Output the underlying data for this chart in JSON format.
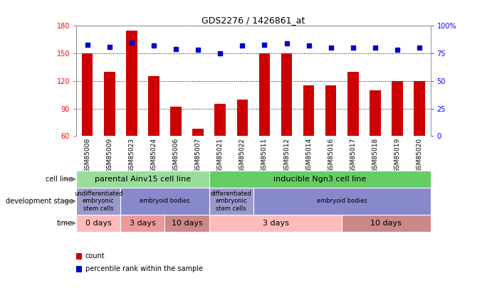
{
  "title": "GDS2276 / 1426861_at",
  "samples": [
    "GSM85008",
    "GSM85009",
    "GSM85023",
    "GSM85024",
    "GSM85006",
    "GSM85007",
    "GSM85021",
    "GSM85022",
    "GSM85011",
    "GSM85012",
    "GSM85014",
    "GSM85016",
    "GSM85017",
    "GSM85018",
    "GSM85019",
    "GSM85020"
  ],
  "counts": [
    150,
    130,
    175,
    125,
    92,
    68,
    95,
    100,
    150,
    150,
    115,
    115,
    130,
    110,
    120,
    120
  ],
  "percentiles": [
    83,
    81,
    85,
    82,
    79,
    78,
    75,
    82,
    83,
    84,
    82,
    80,
    80,
    80,
    78,
    80
  ],
  "ylim_left": [
    60,
    180
  ],
  "yticks_left": [
    60,
    90,
    120,
    150,
    180
  ],
  "ylim_right": [
    0,
    100
  ],
  "yticks_right": [
    0,
    25,
    50,
    75,
    100
  ],
  "bar_color": "#cc0000",
  "dot_color": "#0000cc",
  "xtick_bg": "#cccccc",
  "cell_line_groups": [
    {
      "label": "parental Ainv15 cell line",
      "start": 0,
      "end": 6,
      "color": "#99dd99"
    },
    {
      "label": "inducible Ngn3 cell line",
      "start": 6,
      "end": 16,
      "color": "#66cc66"
    }
  ],
  "dev_stage_groups": [
    {
      "label": "undifferentiated\nembryonic\nstem cells",
      "start": 0,
      "end": 2,
      "color": "#9999cc"
    },
    {
      "label": "embryoid bodies",
      "start": 2,
      "end": 6,
      "color": "#8888cc"
    },
    {
      "label": "differentiated\nembryonic\nstem cells",
      "start": 6,
      "end": 8,
      "color": "#9999cc"
    },
    {
      "label": "embryoid bodies",
      "start": 8,
      "end": 16,
      "color": "#8888cc"
    }
  ],
  "time_groups": [
    {
      "label": "0 days",
      "start": 0,
      "end": 2,
      "color": "#ffbbbb"
    },
    {
      "label": "3 days",
      "start": 2,
      "end": 4,
      "color": "#ee9999"
    },
    {
      "label": "10 days",
      "start": 4,
      "end": 6,
      "color": "#cc8888"
    },
    {
      "label": "3 days",
      "start": 6,
      "end": 12,
      "color": "#ffbbbb"
    },
    {
      "label": "10 days",
      "start": 12,
      "end": 16,
      "color": "#cc8888"
    }
  ],
  "row_labels": [
    "cell line",
    "development stage",
    "time"
  ],
  "legend_labels": [
    "count",
    "percentile rank within the sample"
  ],
  "background_color": "#ffffff"
}
